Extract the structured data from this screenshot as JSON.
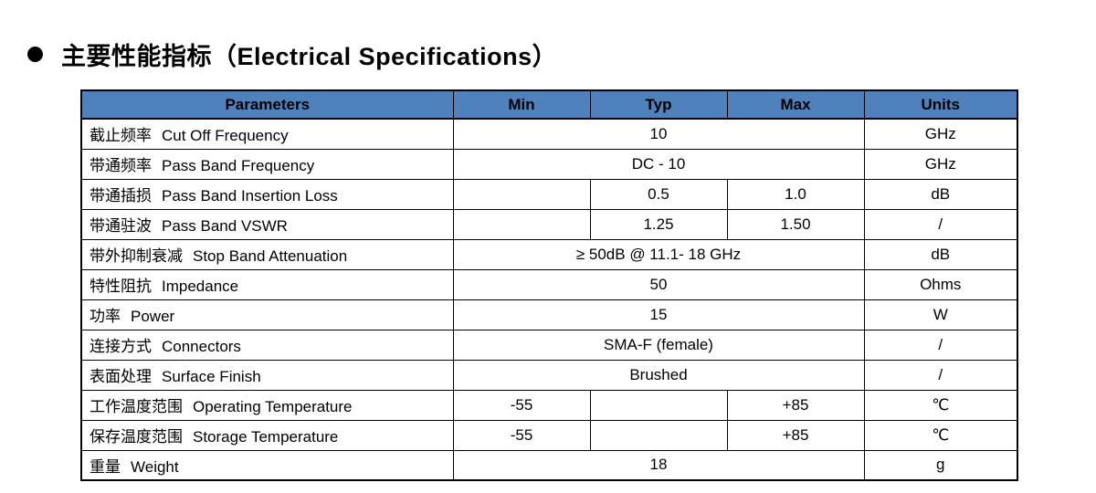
{
  "title": {
    "bullet": "●",
    "text": "主要性能指标（Electrical Specifications）"
  },
  "colors": {
    "header_bg": "#4f81bd",
    "header_text": "#000000",
    "border": "#000000",
    "page_bg": "#ffffff"
  },
  "table": {
    "headers": {
      "parameters": "Parameters",
      "min": "Min",
      "typ": "Typ",
      "max": "Max",
      "units": "Units"
    },
    "rows": [
      {
        "zh": "截止频率",
        "en": "Cut Off Frequency",
        "span": "10",
        "units": "GHz"
      },
      {
        "zh": "带通频率",
        "en": "Pass Band Frequency",
        "span": "DC - 10",
        "units": "GHz"
      },
      {
        "zh": "带通插损",
        "en": "Pass Band Insertion Loss",
        "min": "",
        "typ": "0.5",
        "max": "1.0",
        "units": "dB"
      },
      {
        "zh": "带通驻波",
        "en": "Pass Band VSWR",
        "min": "",
        "typ": "1.25",
        "max": "1.50",
        "units": "/"
      },
      {
        "zh": "带外抑制衰减",
        "en": "Stop Band Attenuation",
        "span": "≥ 50dB @ 11.1- 18 GHz",
        "units": "dB"
      },
      {
        "zh": "特性阻抗",
        "en": "Impedance",
        "span": "50",
        "units": "Ohms"
      },
      {
        "zh": "功率",
        "en": "Power",
        "span": "15",
        "units": "W"
      },
      {
        "zh": "连接方式",
        "en": "Connectors",
        "span": "SMA-F (female)",
        "units": "/"
      },
      {
        "zh": "表面处理",
        "en": "Surface Finish",
        "span": "Brushed",
        "units": "/"
      },
      {
        "zh": "工作温度范围",
        "en": "Operating Temperature",
        "min": "-55",
        "typ": "",
        "max": "+85",
        "units": "℃"
      },
      {
        "zh": "保存温度范围",
        "en": "Storage Temperature",
        "min": "-55",
        "typ": "",
        "max": "+85",
        "units": "℃"
      },
      {
        "zh": "重量",
        "en": "Weight",
        "span": "18",
        "units": "g"
      }
    ]
  }
}
